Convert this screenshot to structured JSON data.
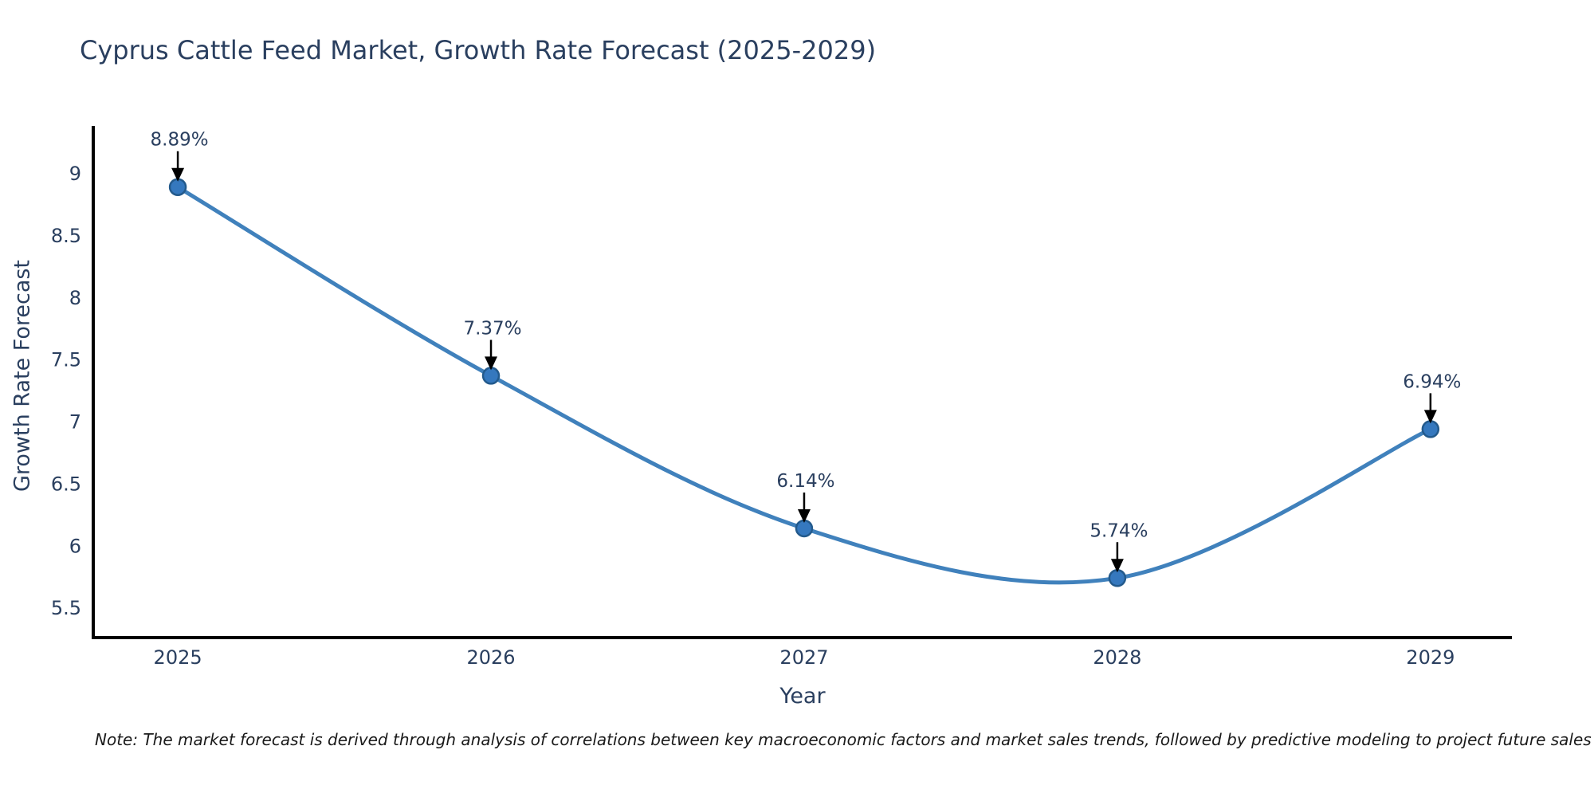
{
  "note": "Note: The market forecast is derived through analysis of correlations between key macroeconomic factors and market sales trends, followed by predictive modeling to project future sales",
  "colors": {
    "background": "#ffffff",
    "title_text": "#2a3f5f",
    "axis_text": "#2a3f5f",
    "axis_line": "#000000",
    "line": "#4081bc",
    "marker_fill": "#3578be",
    "marker_stroke": "#235a8c",
    "annotation_text": "#2a3f5f",
    "arrow": "#000000",
    "note_text": "#1a1a1a"
  },
  "chart_data": {
    "type": "line",
    "title": "Cyprus Cattle Feed Market, Growth Rate Forecast (2025-2029)",
    "xlabel": "Year",
    "ylabel": "Growth Rate Forecast",
    "x": [
      2025,
      2026,
      2027,
      2028,
      2029
    ],
    "y": [
      8.89,
      7.37,
      6.14,
      5.74,
      6.94
    ],
    "point_labels": [
      "8.89%",
      "7.37%",
      "6.14%",
      "5.74%",
      "6.94%"
    ],
    "xticks": [
      "2025",
      "2026",
      "2027",
      "2028",
      "2029"
    ],
    "yticks": [
      5.5,
      6,
      6.5,
      7,
      7.5,
      8,
      8.5,
      9
    ],
    "xlim": [
      2024.73,
      2029.26
    ],
    "ylim": [
      5.26,
      9.37
    ],
    "line_shape": "spline",
    "grid": false,
    "legend": false,
    "annotations_have_arrows": true
  }
}
